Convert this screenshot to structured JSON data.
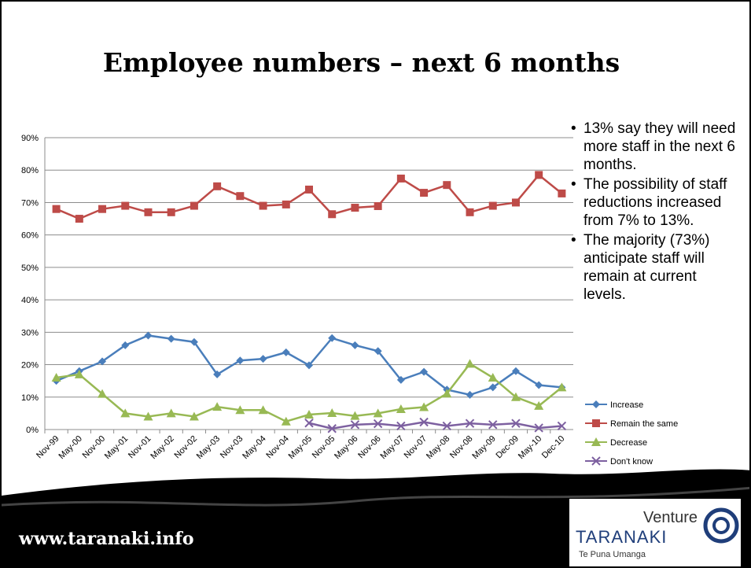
{
  "slide": {
    "title": "Employee numbers – next 6 months",
    "bullets": [
      "13% say they will need more staff in the next 6 months.",
      "The possibility of staff reductions increased from 7% to 13%.",
      "The majority (73%) anticipate staff will remain at current levels."
    ],
    "footer_url": "www.taranaki.info",
    "logo": {
      "name": "Venture",
      "region": "TARANAKI",
      "tagline": "Te Puna Umanga"
    }
  },
  "chart_data": {
    "type": "line",
    "categories": [
      "Nov-99",
      "May-00",
      "Nov-00",
      "May-01",
      "Nov-01",
      "May-02",
      "Nov-02",
      "May-03",
      "Nov-03",
      "May-04",
      "Nov-04",
      "May-05",
      "Nov-05",
      "May-06",
      "Nov-06",
      "May-07",
      "Nov-07",
      "May-08",
      "Nov-08",
      "May-09",
      "Dec-09",
      "May-10",
      "Dec-10"
    ],
    "series": [
      {
        "name": "Increase",
        "color": "#4a7ebb",
        "marker": "diamond",
        "values": [
          15,
          18,
          21,
          26,
          29,
          28,
          27,
          17,
          21.3,
          21.8,
          23.8,
          19.8,
          28.2,
          26,
          24.2,
          15.3,
          17.8,
          12.3,
          10.7,
          13,
          18,
          13.7,
          13
        ]
      },
      {
        "name": "Remain the same",
        "color": "#be4b48",
        "marker": "square",
        "values": [
          68,
          65,
          68,
          69,
          67,
          67,
          69,
          75,
          72,
          69,
          69.4,
          74,
          66.4,
          68.4,
          68.9,
          77.4,
          73,
          75.4,
          67,
          69,
          70,
          78.5,
          72.8
        ]
      },
      {
        "name": "Decrease",
        "color": "#98b954",
        "marker": "triangle",
        "values": [
          16,
          17,
          11,
          5,
          4,
          5,
          4,
          7,
          6,
          6,
          2.5,
          4.6,
          5.1,
          4.2,
          5,
          6.3,
          6.9,
          11.1,
          20.3,
          16,
          10,
          7.3,
          13
        ]
      },
      {
        "name": "Don't know",
        "color": "#7d60a0",
        "marker": "x",
        "values": [
          null,
          null,
          null,
          null,
          null,
          null,
          null,
          null,
          null,
          null,
          null,
          2,
          0.3,
          1.5,
          1.8,
          1.1,
          2.3,
          1.1,
          1.9,
          1.5,
          1.9,
          0.5,
          1.1
        ]
      }
    ],
    "ylim": [
      0,
      90
    ],
    "yticks": [
      {
        "value": 0,
        "label": "0%"
      },
      {
        "value": 10,
        "label": "10%"
      },
      {
        "value": 20,
        "label": "20%"
      },
      {
        "value": 30,
        "label": "30%"
      },
      {
        "value": 40,
        "label": "40%"
      },
      {
        "value": 50,
        "label": "50%"
      },
      {
        "value": 60,
        "label": "60%"
      },
      {
        "value": 70,
        "label": "70%"
      },
      {
        "value": 80,
        "label": "80%"
      },
      {
        "value": 90,
        "label": "90%"
      }
    ],
    "grid": true,
    "legend": "right"
  }
}
